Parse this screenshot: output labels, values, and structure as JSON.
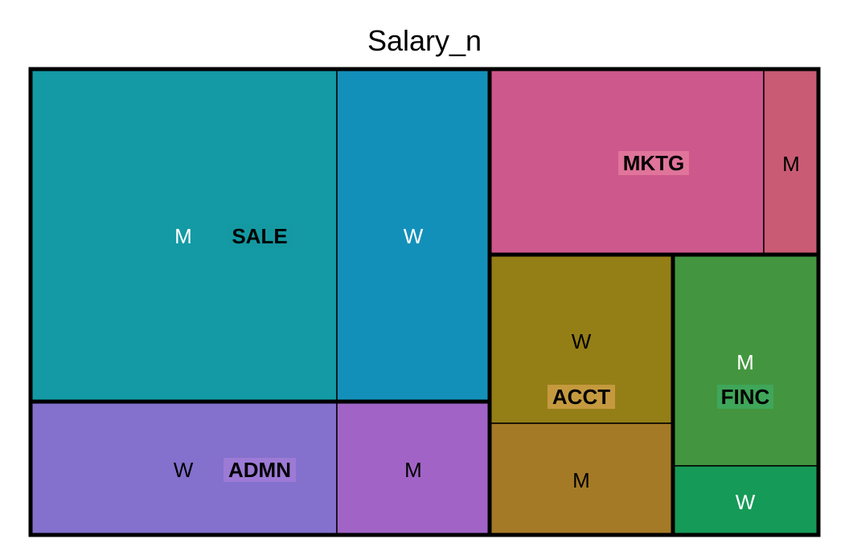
{
  "chart_data": {
    "type": "treemap",
    "title": "Salary_n",
    "groups": [
      {
        "label": "SALE",
        "color": "#1499A3",
        "children": [
          {
            "label": "M",
            "color": "#139AA4",
            "label_color": "#ffffff"
          },
          {
            "label": "W",
            "color": "#1390BA",
            "label_color": "#ffffff"
          }
        ]
      },
      {
        "label": "ADMN",
        "color": "#9C7AD6",
        "children": [
          {
            "label": "W",
            "color": "#8470CD",
            "label_color": "#000000"
          },
          {
            "label": "M",
            "color": "#A164C6",
            "label_color": "#000000"
          }
        ]
      },
      {
        "label": "MKTG",
        "color": "#E0749A",
        "children": [
          {
            "label": "",
            "color": "#CD588C",
            "label_color": "#000000"
          },
          {
            "label": "M",
            "color": "#C95B74",
            "label_color": "#000000"
          }
        ]
      },
      {
        "label": "ACCT",
        "color": "#C59A3F",
        "children": [
          {
            "label": "W",
            "color": "#947F16",
            "label_color": "#000000"
          },
          {
            "label": "M",
            "color": "#A57A26",
            "label_color": "#000000"
          }
        ]
      },
      {
        "label": "FINC",
        "color": "#3FA65A",
        "children": [
          {
            "label": "M",
            "color": "#43963F",
            "label_color": "#ffffff"
          },
          {
            "label": "W",
            "color": "#169A57",
            "label_color": "#ffffff"
          }
        ]
      }
    ]
  }
}
